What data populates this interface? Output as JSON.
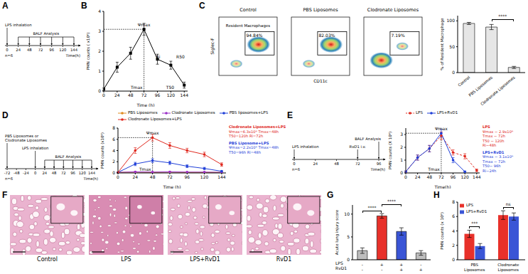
{
  "timelines": [
    {
      "panel": "A",
      "ticks": [
        0,
        24,
        48,
        72,
        96,
        120,
        144
      ],
      "events": [
        {
          "text": "LPS inhalation",
          "at": [
            0
          ]
        },
        {
          "text": "BALF Analysis",
          "at": [
            24,
            48,
            72,
            96,
            120,
            144
          ]
        }
      ],
      "xlabel": "Time(h)",
      "note": "n=6"
    },
    {
      "panel": "D",
      "ticks": [
        -72,
        -48,
        -24,
        0,
        24,
        48,
        72,
        96,
        120,
        144
      ],
      "events": [
        {
          "text": "PBS Liposomes or Clodronate Liposomes",
          "at": [
            -72
          ]
        },
        {
          "text": "LPS inhalation",
          "at": [
            0
          ]
        },
        {
          "text": "BALF Analysis",
          "at": [
            24,
            48,
            72,
            96,
            120,
            144
          ]
        }
      ],
      "xlabel": "Time(h)",
      "note": "n=6"
    },
    {
      "panel": "E",
      "ticks": [
        0,
        24,
        48,
        72,
        96
      ],
      "events": [
        {
          "text": "LPS inhalation",
          "at": [
            0
          ]
        },
        {
          "text": "RvD1 i.v.",
          "at": [
            72
          ]
        },
        {
          "text": "BALF Analysis",
          "at": [
            96
          ]
        }
      ],
      "xlabel": "Time(h)",
      "note": "n=6"
    }
  ],
  "flow_cytometry": {
    "panel": "C",
    "xlabel": "CD11c",
    "ylabel": "Siglec-F",
    "gate_name": "Resident Macrophages",
    "plots": [
      {
        "title": "Control",
        "gate_label": "94.84%"
      },
      {
        "title": "PBS Liposomes",
        "gate_label": "82.03%"
      },
      {
        "title": "Clodronate Liposomes",
        "gate_label": "7.19%"
      }
    ]
  },
  "histology": {
    "panel": "F",
    "images": [
      "Control",
      "LPS",
      "LPS+RvD1",
      "RvD1"
    ]
  },
  "chart_data": [
    {
      "panel": "B",
      "type": "line",
      "xlabel": "Time (h)",
      "ylabel": "PMN counts ( x10⁶)",
      "x": [
        0,
        24,
        48,
        72,
        96,
        120,
        144
      ],
      "values": [
        0.1,
        1.2,
        1.9,
        3.1,
        1.6,
        1.3,
        0.3
      ],
      "errors": [
        0.05,
        0.25,
        0.3,
        0.3,
        0.25,
        0.2,
        0.15
      ],
      "color": "#000000",
      "marker": "square",
      "xlim": [
        0,
        150
      ],
      "ylim": [
        0,
        4
      ],
      "xticks": [
        0,
        24,
        48,
        72,
        96,
        120,
        144
      ],
      "yticks": [
        0,
        1,
        2,
        3,
        4
      ],
      "annotations": [
        "Ψmax",
        "Tmax",
        "T50",
        "Ri",
        "R50"
      ]
    },
    {
      "type": "bar",
      "ylabel": "% of Resident Macrophage",
      "categories": [
        "Control",
        "PBS Liposomes",
        "Clodronate Liposomes"
      ],
      "values": [
        95,
        88,
        10
      ],
      "errors": [
        2,
        5,
        2
      ],
      "colors": [
        "#e6e6e6",
        "#e6e6e6",
        "#e6e6e6"
      ],
      "ylim": [
        0,
        110
      ],
      "yticks": [
        0,
        50,
        100
      ],
      "annotations": [
        "****"
      ]
    },
    {
      "type": "line",
      "xlabel": "Time (h)",
      "ylabel": "PMN counts (x10⁶)",
      "x": [
        0,
        24,
        48,
        72,
        96,
        120,
        144
      ],
      "xlim": [
        0,
        150
      ],
      "ylim": [
        0,
        8
      ],
      "xticks": [
        0,
        24,
        48,
        72,
        96,
        120,
        144
      ],
      "yticks": [
        0,
        2,
        4,
        6,
        8
      ],
      "marker": "circle",
      "legend": "top",
      "series": [
        {
          "name": "PBS Liposomes",
          "color": "#e08a1e",
          "values": [
            0.1,
            0.15,
            0.1,
            0.15,
            0.1,
            0.1,
            0.1
          ],
          "errors": [
            0.05,
            0.05,
            0.05,
            0.05,
            0.05,
            0.05,
            0.05
          ]
        },
        {
          "name": "Clodronate Liposomes",
          "color": "#9b30c8",
          "values": [
            0.1,
            0.2,
            0.15,
            0.2,
            0.15,
            0.15,
            0.1
          ],
          "errors": [
            0.05,
            0.05,
            0.05,
            0.05,
            0.05,
            0.05,
            0.05
          ]
        },
        {
          "name": "PBS liposomes+LPS",
          "color": "#1f3fd8",
          "values": [
            0.1,
            1.6,
            2.2,
            1.8,
            1.2,
            0.8,
            0.3
          ],
          "errors": [
            0.05,
            0.3,
            0.35,
            0.3,
            0.25,
            0.2,
            0.1
          ]
        },
        {
          "name": "Clodronate Liposomes+LPS",
          "color": "#e0281e",
          "values": [
            0.1,
            4.0,
            6.3,
            4.9,
            4.0,
            3.3,
            1.5
          ],
          "errors": [
            0.1,
            0.5,
            0.6,
            0.5,
            0.4,
            0.4,
            0.3
          ]
        }
      ],
      "annotations": [
        "Ψmax",
        "Tmax"
      ],
      "notes": [
        {
          "color": "#e0281e",
          "lines": [
            "Clodronate Liposomes+LPS",
            "Ψmax=6.3x10⁶  Tmax=48h",
            "T50=120h   Ri=72h"
          ]
        },
        {
          "color": "#1f3fd8",
          "lines": [
            "PBS Liposome+LPS",
            "Ψmax=2.2x10⁶  Tmax=48h",
            "T50=96h   Ri=48h"
          ]
        }
      ]
    },
    {
      "type": "line",
      "xlabel": "Time(h)",
      "ylabel": "PMN counts (X 10⁶)",
      "x": [
        0,
        24,
        48,
        72,
        96,
        120,
        144
      ],
      "xlim": [
        0,
        150
      ],
      "ylim": [
        0,
        3.5
      ],
      "xticks": [
        0,
        24,
        48,
        72,
        96,
        120,
        144
      ],
      "yticks": [
        0,
        1,
        2,
        3
      ],
      "marker": "circle",
      "legend": "top",
      "series": [
        {
          "name": "LPS",
          "color": "#e0281e",
          "line_style": "dashed",
          "values": [
            0.1,
            1.2,
            1.9,
            2.9,
            1.6,
            1.3,
            0.2
          ],
          "errors": [
            0.05,
            0.2,
            0.25,
            0.3,
            0.2,
            0.2,
            0.1
          ]
        },
        {
          "name": "LPS+RvD1",
          "color": "#1f3fd8",
          "line_style": "solid",
          "values": [
            0.1,
            1.2,
            1.9,
            3.1,
            1.0,
            0.1,
            null
          ],
          "errors": [
            0.05,
            0.2,
            0.25,
            0.3,
            0.2,
            0.05,
            null
          ]
        }
      ],
      "annotations": [
        "Ψmax",
        "Tmax"
      ],
      "notes": [
        {
          "color": "#e0281e",
          "lines": [
            "LPS",
            "Ψmax ~ 2.9x10⁶",
            "Tmax ~ 72h",
            "T50 ~ 120h",
            "Ri~48h"
          ]
        },
        {
          "color": "#1f3fd8",
          "lines": [
            "LPS+RvD1",
            "Ψmax ~ 3.1x10⁶",
            "Tmax ~ 72h",
            "T50~ 96h",
            "Ri~24h"
          ]
        }
      ]
    },
    {
      "panel": "G",
      "type": "bar",
      "ylabel": "Acute lung injury score",
      "categories": [
        null,
        null,
        null,
        null
      ],
      "values": [
        2.0,
        9.6,
        6.2,
        1.5
      ],
      "errors": [
        0.6,
        0.5,
        0.8,
        0.5
      ],
      "colors": [
        "#bdbdbd",
        "#e8312a",
        "#3a55d6",
        "#bdbdbd"
      ],
      "ylim": [
        0,
        12
      ],
      "yticks": [
        0,
        5,
        10
      ],
      "factors": [
        {
          "name": "LPS",
          "signs": [
            "-",
            "+",
            "+",
            "-"
          ]
        },
        {
          "name": "RvD1",
          "signs": [
            "-",
            "-",
            "+",
            "+"
          ]
        }
      ],
      "annotations": [
        "****",
        "****"
      ]
    },
    {
      "panel": "H",
      "type": "bar",
      "ylabel": "PMN counts (x 10⁶)",
      "categories": [
        "PBS Liposomes",
        "Clodronate Liposomes"
      ],
      "series": [
        {
          "name": "LPS",
          "color": "#e8312a",
          "values": [
            3.6,
            6.2
          ],
          "errors": [
            0.5,
            0.6
          ]
        },
        {
          "name": "LPS+RvD1",
          "color": "#3a55d6",
          "values": [
            1.9,
            6.0
          ],
          "errors": [
            0.35,
            0.5
          ]
        }
      ],
      "ylim": [
        0,
        8
      ],
      "yticks": [
        0,
        2,
        4,
        6,
        8
      ],
      "legend": "top-left",
      "annotations": [
        "***",
        "ns"
      ]
    }
  ]
}
